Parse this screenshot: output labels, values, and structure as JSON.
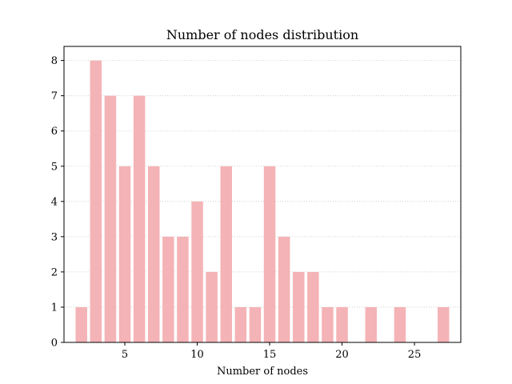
{
  "chart_data": {
    "type": "bar",
    "title": "Number of nodes distribution",
    "xlabel": "Number of nodes",
    "ylabel": "",
    "x": [
      2,
      3,
      4,
      5,
      6,
      7,
      8,
      9,
      10,
      11,
      12,
      13,
      14,
      15,
      16,
      17,
      18,
      19,
      20,
      22,
      24,
      27
    ],
    "values": [
      1,
      8,
      7,
      5,
      7,
      5,
      3,
      3,
      4,
      2,
      5,
      1,
      1,
      5,
      3,
      2,
      2,
      1,
      1,
      1,
      1,
      1
    ],
    "xlim": [
      0.8,
      28.2
    ],
    "ylim": [
      0,
      8.4
    ],
    "xticks": [
      5,
      10,
      15,
      20,
      25
    ],
    "yticks": [
      0,
      1,
      2,
      3,
      4,
      5,
      6,
      7,
      8
    ],
    "bar_color": "#f4b3b6",
    "grid": "horizontal dotted",
    "legend": "none"
  }
}
